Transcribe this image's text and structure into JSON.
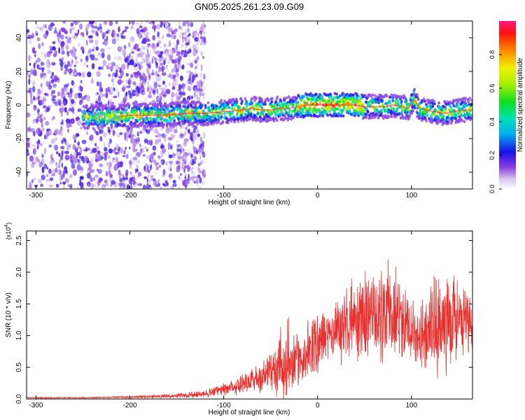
{
  "figure": {
    "title": "GN05.2025.261.23.09.G09"
  },
  "chart_data": [
    {
      "type": "heatmap",
      "title": "GN05.2025.261.23.09.G09",
      "xlabel": "Height of straight line (km)",
      "ylabel": "Frequency (Hz)",
      "xlim": [
        -310,
        165
      ],
      "ylim": [
        -50,
        50
      ],
      "x_ticks": [
        -300,
        -200,
        -100,
        0,
        100
      ],
      "x_tick_labels": [
        "-300",
        "-200",
        "-100",
        "0",
        "100"
      ],
      "y_ticks": [
        -40,
        -20,
        0,
        20,
        40
      ],
      "y_tick_labels": [
        "-40",
        "-20",
        "0",
        "20",
        "40"
      ],
      "ridge": {
        "description_points_x": [
          -245,
          -230,
          -210,
          -200,
          -180,
          -160,
          -140,
          -120,
          -100,
          -80,
          -70,
          -60,
          -50,
          -40,
          -30,
          -20,
          -10,
          0,
          10,
          20,
          30,
          40,
          50,
          60,
          70,
          80,
          90,
          97,
          103,
          108,
          115,
          125,
          135,
          145,
          155,
          165
        ],
        "frequency_hz": [
          -7,
          -7,
          -7,
          -6,
          -6,
          -6,
          -5,
          -5,
          -4,
          -3,
          -2,
          -3,
          -3,
          -2,
          -2,
          -1,
          0,
          0,
          0,
          0,
          0,
          0,
          -1,
          -1,
          -1,
          0,
          -1,
          -2,
          4,
          -2,
          -3,
          -4,
          -5,
          -4,
          -3,
          -3
        ]
      },
      "colorbar": {
        "label": "Normalized spectral amplitude",
        "range": [
          0,
          1
        ],
        "ticks": [
          0.0,
          0.2,
          0.4,
          0.6,
          0.8
        ],
        "tick_labels": [
          "0.0",
          "0.2",
          "0.4",
          "0.6",
          "0.8"
        ]
      }
    },
    {
      "type": "line",
      "xlabel": "Height of straight line (km)",
      "ylabel": "SNR (10 * v/v)",
      "multiplier_label": "(x10",
      "multiplier_exp": "4",
      "multiplier_close": ")",
      "xlim": [
        -310,
        165
      ],
      "ylim": [
        0,
        2.65
      ],
      "x_ticks": [
        -300,
        -200,
        -100,
        0,
        100
      ],
      "x_tick_labels": [
        "-300",
        "-200",
        "-100",
        "0",
        "100"
      ],
      "y_ticks": [
        0.0,
        0.5,
        1.0,
        1.5,
        2.0,
        2.5
      ],
      "y_tick_labels": [
        "0.0",
        "0.5",
        "1.0",
        "1.5",
        "2.0",
        "2.5"
      ],
      "series": [
        {
          "name": "SNR",
          "color": "#e8302e",
          "envelope_x": [
            -310,
            -250,
            -200,
            -180,
            -150,
            -120,
            -100,
            -80,
            -60,
            -45,
            -40,
            -30,
            -20,
            -10,
            0,
            20,
            40,
            60,
            80,
            100,
            110,
            125,
            140,
            155,
            165
          ],
          "mean": [
            0.02,
            0.02,
            0.03,
            0.04,
            0.05,
            0.08,
            0.15,
            0.25,
            0.35,
            0.45,
            0.45,
            0.5,
            0.6,
            0.75,
            0.9,
            1.1,
            1.25,
            1.3,
            1.35,
            1.15,
            0.95,
            1.1,
            1.3,
            1.2,
            1.15
          ],
          "spread": [
            0.01,
            0.01,
            0.02,
            0.03,
            0.04,
            0.07,
            0.12,
            0.2,
            0.3,
            0.45,
            0.6,
            0.45,
            0.5,
            0.55,
            0.55,
            0.6,
            0.75,
            0.85,
            0.9,
            0.75,
            0.7,
            0.95,
            1.0,
            0.7,
            0.6
          ]
        }
      ]
    }
  ]
}
